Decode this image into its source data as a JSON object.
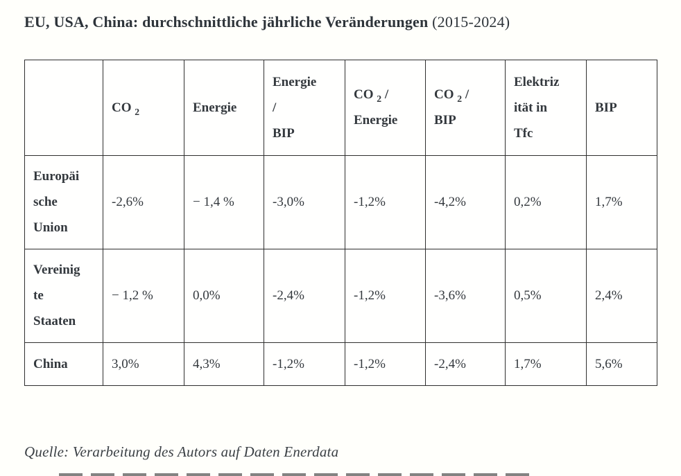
{
  "title": {
    "bold": "EU, USA, China: durchschnittliche jährliche Veränderungen",
    "regular": " (2015-2024)"
  },
  "table": {
    "corner_label": "",
    "columns": [
      {
        "id": "co2",
        "segments": [
          {
            "t": "CO "
          },
          {
            "t": "2",
            "sub": true
          }
        ]
      },
      {
        "id": "energie",
        "segments": [
          {
            "t": "Energie"
          }
        ]
      },
      {
        "id": "energie-bip",
        "segments": [
          {
            "t": "Energie\n/\nBIP"
          }
        ]
      },
      {
        "id": "co2-energie",
        "segments": [
          {
            "t": "CO "
          },
          {
            "t": "2",
            "sub": true
          },
          {
            "t": " /\nEnergie"
          }
        ]
      },
      {
        "id": "co2-bip",
        "segments": [
          {
            "t": "CO "
          },
          {
            "t": "2",
            "sub": true
          },
          {
            "t": " /\nBIP"
          }
        ]
      },
      {
        "id": "elektrizitaet-tfc",
        "segments": [
          {
            "t": "Elektriz\nität in\nTfc"
          }
        ]
      },
      {
        "id": "bip",
        "segments": [
          {
            "t": "BIP"
          }
        ]
      }
    ],
    "rows": [
      {
        "id": "europaeische-union",
        "label": "Europäi\nsche\nUnion",
        "values": [
          "-2,6%",
          "− 1,4 %",
          "-3,0%",
          "-1,2%",
          "-4,2%",
          "0,2%",
          "1,7%"
        ]
      },
      {
        "id": "vereinigte-staaten",
        "label": "Vereinig\nte\nStaaten",
        "values": [
          "− 1,2 %",
          "0,0%",
          "-2,4%",
          "-1,2%",
          "-3,6%",
          "0,5%",
          "2,4%"
        ]
      },
      {
        "id": "china",
        "label": "China",
        "values": [
          "3,0%",
          "4,3%",
          "-1,2%",
          "-1,2%",
          "-2,4%",
          "1,7%",
          "5,6%"
        ]
      }
    ]
  },
  "source": "Quelle: Verarbeitung des Autors auf Daten Enerdata",
  "colors": {
    "text": "#32373c",
    "border": "#2e2e2e",
    "background": "#fffffb"
  }
}
